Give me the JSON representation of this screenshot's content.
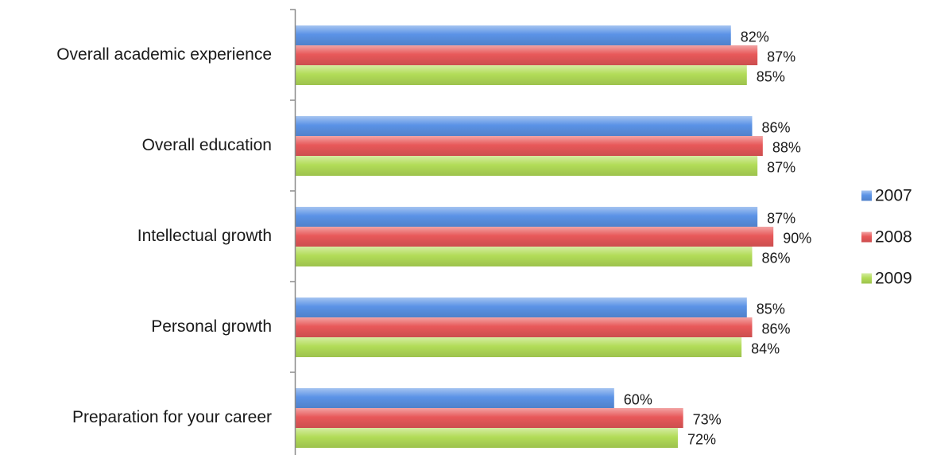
{
  "chart_data": {
    "type": "bar",
    "orientation": "horizontal",
    "categories": [
      "Overall academic experience",
      "Overall education",
      "Intellectual growth",
      "Personal growth",
      "Preparation for your career"
    ],
    "series": [
      {
        "name": "2007",
        "color": "#5b93e6",
        "values": [
          82,
          86,
          87,
          85,
          60
        ],
        "labels": [
          "82%",
          "86%",
          "87%",
          "85%",
          "60%"
        ]
      },
      {
        "name": "2008",
        "color": "#e8595a",
        "values": [
          87,
          88,
          90,
          86,
          73
        ],
        "labels": [
          "87%",
          "88%",
          "90%",
          "86%",
          "73%"
        ]
      },
      {
        "name": "2009",
        "color": "#b2dc58",
        "values": [
          85,
          87,
          86,
          84,
          72
        ],
        "labels": [
          "85%",
          "87%",
          "86%",
          "84%",
          "72%"
        ]
      }
    ],
    "xlim": [
      0,
      100
    ],
    "grid": false,
    "legend_position": "right"
  }
}
